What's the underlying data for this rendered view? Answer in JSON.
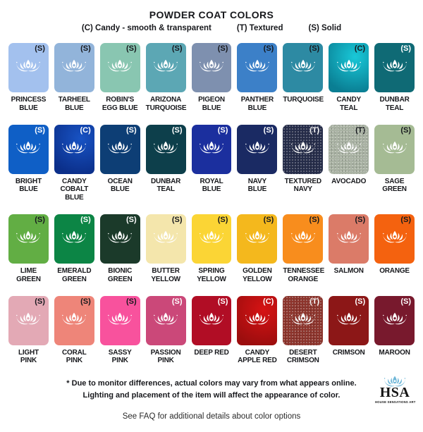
{
  "header": {
    "title": "POWDER COAT COLORS",
    "legend": [
      {
        "label": "(C) Candy - smooth & transparent"
      },
      {
        "label": "(T) Textured"
      },
      {
        "label": "(S) Solid"
      }
    ]
  },
  "swatch_rows": [
    [
      {
        "name": "PRINCESS\nBLUE",
        "code": "(S)",
        "finish": "solid",
        "color": "#a3c1ee",
        "code_light": false
      },
      {
        "name": "TARHEEL\nBLUE",
        "code": "(S)",
        "finish": "solid",
        "color": "#92b4da",
        "code_light": false
      },
      {
        "name": "ROBIN'S\nEGG BLUE",
        "code": "(S)",
        "finish": "solid",
        "color": "#89c6b1",
        "code_light": false
      },
      {
        "name": "ARIZONA\nTURQUOISE",
        "code": "(S)",
        "finish": "solid",
        "color": "#5ca7b4",
        "code_light": false
      },
      {
        "name": "PIGEON\nBLUE",
        "code": "(S)",
        "finish": "solid",
        "color": "#7e90af",
        "code_light": false
      },
      {
        "name": "PANTHER\nBLUE",
        "code": "(S)",
        "finish": "solid",
        "color": "#3c80c8",
        "code_light": false
      },
      {
        "name": "TURQUOISE",
        "code": "(S)",
        "finish": "solid",
        "color": "#2d8aa3",
        "code_light": false
      },
      {
        "name": "CANDY\nTEAL",
        "code": "(C)",
        "finish": "candy",
        "color": "#0a7e93",
        "color2": "#19c8d8",
        "code_light": false
      },
      {
        "name": "DUNBAR\nTEAL",
        "code": "(S)",
        "finish": "solid",
        "color": "#0f6a75",
        "code_light": true
      }
    ],
    [
      {
        "name": "BRIGHT\nBLUE",
        "code": "(S)",
        "finish": "solid",
        "color": "#0f5fc6",
        "code_light": true
      },
      {
        "name": "CANDY\nCOBALT BLUE",
        "code": "(C)",
        "finish": "candy",
        "color": "#0b2f8a",
        "color2": "#1853c4",
        "code_light": true
      },
      {
        "name": "OCEAN\nBLUE",
        "code": "(S)",
        "finish": "solid",
        "color": "#0d3e75",
        "code_light": true
      },
      {
        "name": "DUNBAR\nTEAL",
        "code": "(S)",
        "finish": "solid",
        "color": "#0d3f4b",
        "code_light": true
      },
      {
        "name": "ROYAL\nBLUE",
        "code": "(S)",
        "finish": "solid",
        "color": "#1b2f9e",
        "code_light": true
      },
      {
        "name": "NAVY\nBLUE",
        "code": "(S)",
        "finish": "solid",
        "color": "#1a2a63",
        "code_light": true
      },
      {
        "name": "TEXTURED\nNAVY",
        "code": "(T)",
        "finish": "textured",
        "color": "#252c49",
        "code_light": true
      },
      {
        "name": "AVOCADO",
        "code": "(T)",
        "finish": "textured",
        "color": "#a9b2a3",
        "code_light": false
      },
      {
        "name": "SAGE\nGREEN",
        "code": "(S)",
        "finish": "solid",
        "color": "#a5bb94",
        "code_light": false
      }
    ],
    [
      {
        "name": "LIME\nGREEN",
        "code": "(S)",
        "finish": "solid",
        "color": "#62ae44",
        "code_light": false
      },
      {
        "name": "EMERALD\nGREEN",
        "code": "(S)",
        "finish": "solid",
        "color": "#0c8545",
        "code_light": true
      },
      {
        "name": "BIONIC\nGREEN",
        "code": "(S)",
        "finish": "solid",
        "color": "#1b3a2a",
        "code_light": true
      },
      {
        "name": "BUTTER\nYELLOW",
        "code": "(S)",
        "finish": "solid",
        "color": "#f4e6ac",
        "code_light": false
      },
      {
        "name": "SPRING\nYELLOW",
        "code": "(S)",
        "finish": "solid",
        "color": "#fbd535",
        "code_light": false
      },
      {
        "name": "GOLDEN\nYELLOW",
        "code": "(S)",
        "finish": "solid",
        "color": "#f4b81d",
        "code_light": false
      },
      {
        "name": "TENNESSEE\nORANGE",
        "code": "(S)",
        "finish": "solid",
        "color": "#f88d1d",
        "code_light": false
      },
      {
        "name": "SALMON",
        "code": "(S)",
        "finish": "solid",
        "color": "#db7b68",
        "code_light": false
      },
      {
        "name": "ORANGE",
        "code": "(S)",
        "finish": "solid",
        "color": "#f4620f",
        "code_light": false
      }
    ],
    [
      {
        "name": "LIGHT\nPINK",
        "code": "(S)",
        "finish": "solid",
        "color": "#e3a9b5",
        "code_light": false
      },
      {
        "name": "CORAL\nPINK",
        "code": "(S)",
        "finish": "solid",
        "color": "#ee8579",
        "code_light": false
      },
      {
        "name": "SASSY\nPINK",
        "code": "(S)",
        "finish": "solid",
        "color": "#f8529d",
        "code_light": false
      },
      {
        "name": "PASSION\nPINK",
        "code": "(S)",
        "finish": "solid",
        "color": "#cb4879",
        "code_light": true
      },
      {
        "name": "DEEP RED",
        "code": "(S)",
        "finish": "solid",
        "color": "#b10d25",
        "code_light": true
      },
      {
        "name": "CANDY\nAPPLE RED",
        "code": "(C)",
        "finish": "candy",
        "color": "#9c0d0e",
        "color2": "#d61314",
        "code_light": true
      },
      {
        "name": "DESERT\nCRIMSON",
        "code": "(T)",
        "finish": "textured",
        "color": "#8d342c",
        "code_light": true
      },
      {
        "name": "CRIMSON",
        "code": "(S)",
        "finish": "solid",
        "color": "#8c1717",
        "code_light": true
      },
      {
        "name": "MAROON",
        "code": "(S)",
        "finish": "solid",
        "color": "#78192d",
        "code_light": true
      }
    ]
  ],
  "footer": {
    "note_line1": "* Due to monitor differences, actual colors may vary from what appears online.",
    "note_line2": "Lighting and placement of the item will affect the appearance of color.",
    "faq": "See FAQ for additional details about color options",
    "logo": {
      "initials": "HSA",
      "name": "HOUSE SENSATIONS ART",
      "lotus_color": "#6fb7d8"
    }
  }
}
